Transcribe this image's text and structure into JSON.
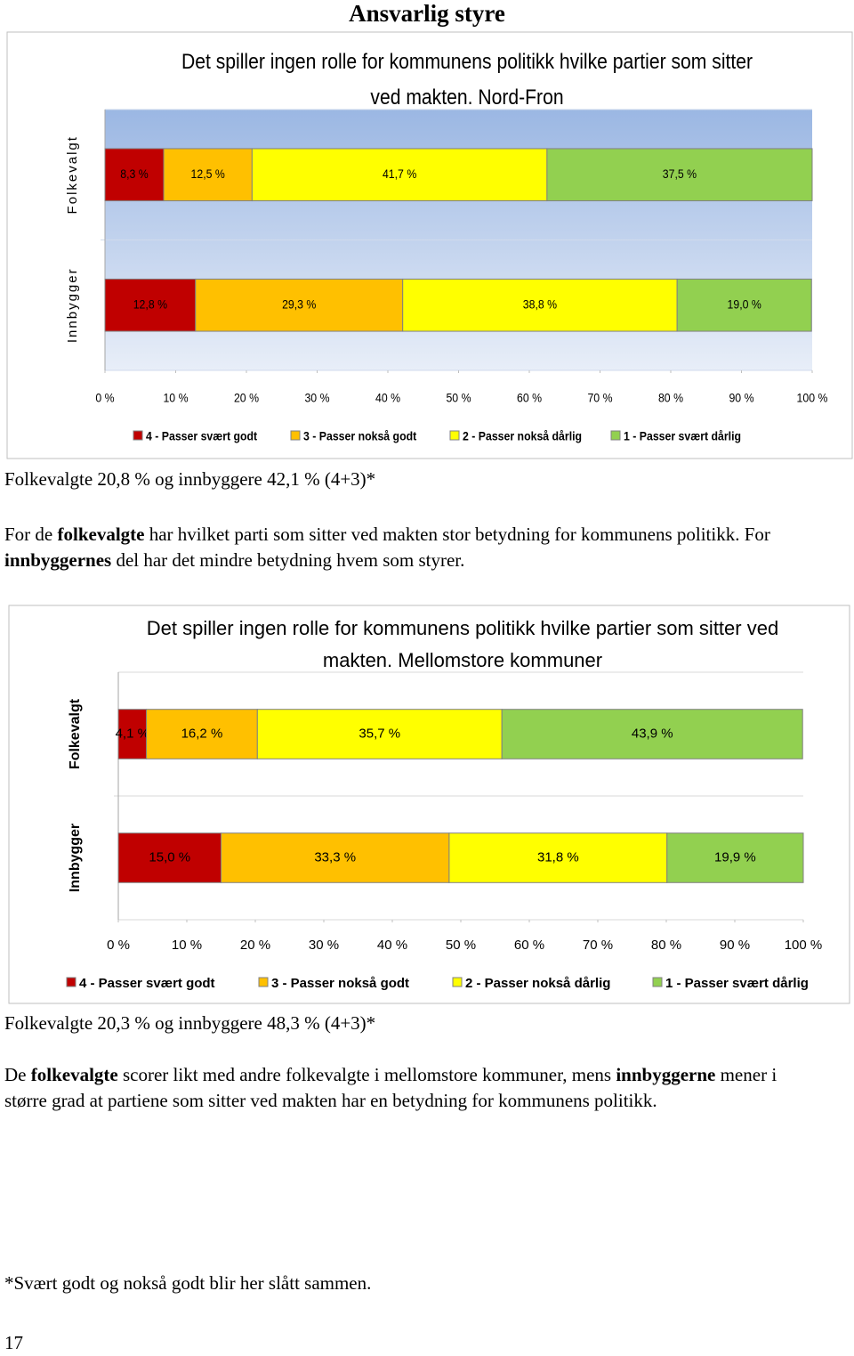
{
  "page": {
    "title": "Ansvarlig styre",
    "summary_1": "Folkevalgte 20,8 % og innbyggere 42,1 % (4+3)*",
    "paragraph_1": [
      {
        "text": "For de ",
        "bold": false
      },
      {
        "text": "folkevalgte",
        "bold": true
      },
      {
        "text": " har hvilket parti som sitter ved makten stor betydning for kommunens politikk. For ",
        "bold": false
      },
      {
        "text": "innbyggernes",
        "bold": true
      },
      {
        "text": " del har det mindre betydning hvem som styrer.",
        "bold": false
      }
    ],
    "summary_2": "Folkevalgte 20,3 % og innbyggere 48,3 % (4+3)*",
    "paragraph_2": [
      {
        "text": "De ",
        "bold": false
      },
      {
        "text": "folkevalgte",
        "bold": true
      },
      {
        "text": " scorer likt med andre folkevalgte i mellomstore kommuner, mens ",
        "bold": false
      },
      {
        "text": "innbyggerne",
        "bold": true
      },
      {
        "text": " mener i større grad at partiene som sitter ved makten har en betydning for kommunens politikk.",
        "bold": false
      }
    ],
    "footnote": "*Svært godt og nokså godt blir her slått sammen.",
    "page_number": "17"
  },
  "chart_data": [
    {
      "type": "stacked-bar-horizontal",
      "title": "Det spiller ingen rolle for kommunens politikk hvilke partier som sitter ved makten. Nord-Fron",
      "categories": [
        "Folkevalgt",
        "Innbygger"
      ],
      "series": [
        {
          "name": "4 - Passer svært godt",
          "color": "#c00000",
          "values": [
            8.3,
            12.8
          ],
          "value_labels": [
            "8,3 %",
            "12,8 %"
          ]
        },
        {
          "name": "3 - Passer nokså godt",
          "color": "#ffc000",
          "values": [
            12.5,
            29.3
          ],
          "value_labels": [
            "12,5 %",
            "29,3 %"
          ]
        },
        {
          "name": "2 - Passer nokså dårlig",
          "color": "#ffff00",
          "values": [
            41.7,
            38.8
          ],
          "value_labels": [
            "41,7 %",
            "38,8 %"
          ]
        },
        {
          "name": "1 - Passer svært dårlig",
          "color": "#92d050",
          "values": [
            37.5,
            19.0
          ],
          "value_labels": [
            "37,5 %",
            "19,0 %"
          ]
        }
      ],
      "xlim": [
        0,
        100
      ],
      "xticks": [
        {
          "value": 0,
          "label": "0 %"
        },
        {
          "value": 10,
          "label": "10 %"
        },
        {
          "value": 20,
          "label": "20 %"
        },
        {
          "value": 30,
          "label": "30 %"
        },
        {
          "value": 40,
          "label": "40 %"
        },
        {
          "value": 50,
          "label": "50 %"
        },
        {
          "value": 60,
          "label": "60 %"
        },
        {
          "value": 70,
          "label": "70 %"
        },
        {
          "value": 80,
          "label": "80 %"
        },
        {
          "value": 90,
          "label": "90 %"
        },
        {
          "value": 100,
          "label": "100 %"
        }
      ],
      "legend": "bottom",
      "grid": false
    },
    {
      "type": "stacked-bar-horizontal",
      "title": "Det spiller ingen rolle for kommunens politikk hvilke partier som sitter ved makten. Mellomstore kommuner",
      "categories": [
        "Folkevalgt",
        "Innbygger"
      ],
      "series": [
        {
          "name": "4 - Passer svært godt",
          "color": "#c00000",
          "values": [
            4.1,
            15.0
          ],
          "value_labels": [
            "4,1 %",
            "15,0 %"
          ]
        },
        {
          "name": "3 - Passer nokså godt",
          "color": "#ffc000",
          "values": [
            16.2,
            33.3
          ],
          "value_labels": [
            "16,2 %",
            "33,3 %"
          ]
        },
        {
          "name": "2 - Passer nokså dårlig",
          "color": "#ffff00",
          "values": [
            35.7,
            31.8
          ],
          "value_labels": [
            "35,7 %",
            "31,8 %"
          ]
        },
        {
          "name": "1 - Passer svært dårlig",
          "color": "#92d050",
          "values": [
            43.9,
            19.9
          ],
          "value_labels": [
            "43,9 %",
            "19,9 %"
          ]
        }
      ],
      "xlim": [
        0,
        100
      ],
      "xticks": [
        {
          "value": 0,
          "label": "0 %"
        },
        {
          "value": 10,
          "label": "10 %"
        },
        {
          "value": 20,
          "label": "20 %"
        },
        {
          "value": 30,
          "label": "30 %"
        },
        {
          "value": 40,
          "label": "40 %"
        },
        {
          "value": 50,
          "label": "50 %"
        },
        {
          "value": 60,
          "label": "60 %"
        },
        {
          "value": 70,
          "label": "70 %"
        },
        {
          "value": 80,
          "label": "80 %"
        },
        {
          "value": 90,
          "label": "90 %"
        },
        {
          "value": 100,
          "label": "100 %"
        }
      ],
      "legend": "bottom",
      "grid": false
    }
  ]
}
